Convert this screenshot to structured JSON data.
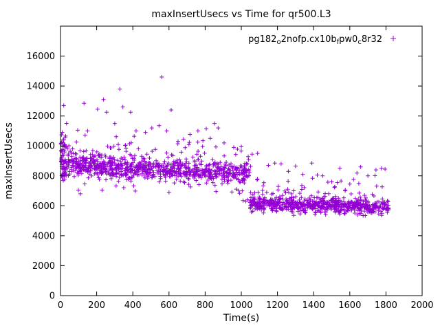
{
  "chart_data": {
    "type": "scatter",
    "title": "maxInsertUsecs vs Time for qr500.L3",
    "xlabel": "Time(s)",
    "ylabel": "maxInsertUsecs",
    "xlim": [
      0,
      2000
    ],
    "ylim": [
      0,
      18000
    ],
    "xticks": [
      0,
      200,
      400,
      600,
      800,
      1000,
      1200,
      1400,
      1600,
      1800,
      2000
    ],
    "yticks": [
      0,
      2000,
      4000,
      6000,
      8000,
      10000,
      12000,
      14000,
      16000
    ],
    "grid": false,
    "legend_position": "top-right-inside",
    "marker": "plus",
    "marker_color": "#9400d3",
    "axis_color": "#000000",
    "background_color": "#ffffff",
    "legend": {
      "series": [
        {
          "segments": [
            {
              "t": "pg182"
            },
            {
              "t": "o",
              "sub": true
            },
            {
              "t": "2nofp.cx10b"
            },
            {
              "t": "f",
              "sub": true
            },
            {
              "t": "pw0"
            },
            {
              "t": "c",
              "sub": true
            },
            {
              "t": "8r32"
            }
          ],
          "marker": "plus",
          "color": "#9400d3"
        }
      ]
    },
    "seed": 1337,
    "bands": [
      {
        "x0": 2,
        "x1": 1045,
        "n": 960,
        "mean0": 8800,
        "mean1": 8150,
        "sd": 330,
        "tail_up_p": 0.1,
        "tail_up_scale": 900,
        "tail_down_p": 0.1,
        "tail_down_scale": 650,
        "ymin": 6450,
        "ymax": 11600
      },
      {
        "x0": 1048,
        "x1": 1815,
        "n": 720,
        "mean0": 6150,
        "mean1": 5900,
        "sd": 230,
        "tail_up_p": 0.12,
        "tail_up_scale": 800,
        "tail_down_p": 0.06,
        "tail_down_scale": 300,
        "ymin": 5350,
        "ymax": 9600
      }
    ],
    "startup_cluster": {
      "x0": 3,
      "x1": 32,
      "n": 42,
      "ymin": 7650,
      "ymax": 10900
    },
    "outliers": [
      [
        18,
        12700
      ],
      [
        10,
        10900
      ],
      [
        14,
        10400
      ],
      [
        95,
        11050
      ],
      [
        110,
        6800
      ],
      [
        130,
        12850
      ],
      [
        150,
        11000
      ],
      [
        205,
        12450
      ],
      [
        230,
        7050
      ],
      [
        238,
        13100
      ],
      [
        255,
        12250
      ],
      [
        300,
        11500
      ],
      [
        328,
        13800
      ],
      [
        345,
        12600
      ],
      [
        388,
        12250
      ],
      [
        418,
        11000
      ],
      [
        470,
        10900
      ],
      [
        505,
        11200
      ],
      [
        545,
        11350
      ],
      [
        560,
        14600
      ],
      [
        588,
        11000
      ],
      [
        600,
        6900
      ],
      [
        612,
        12400
      ],
      [
        650,
        10300
      ],
      [
        680,
        10450
      ],
      [
        760,
        11000
      ],
      [
        788,
        10350
      ],
      [
        806,
        11150
      ],
      [
        828,
        10500
      ],
      [
        852,
        11500
      ],
      [
        860,
        6950
      ],
      [
        872,
        11200
      ],
      [
        905,
        10200
      ],
      [
        958,
        9900
      ],
      [
        985,
        7000
      ],
      [
        990,
        7600
      ],
      [
        1000,
        9950
      ],
      [
        1005,
        7000
      ],
      [
        1010,
        6350
      ],
      [
        1025,
        6300
      ],
      [
        1035,
        6400
      ],
      [
        1060,
        9450
      ],
      [
        1090,
        9500
      ],
      [
        1150,
        8700
      ],
      [
        1185,
        8850
      ],
      [
        1220,
        8800
      ],
      [
        1260,
        8300
      ],
      [
        1300,
        8650
      ],
      [
        1340,
        8100
      ],
      [
        1390,
        8850
      ],
      [
        1420,
        8050
      ],
      [
        1450,
        8000
      ],
      [
        1500,
        7600
      ],
      [
        1545,
        8500
      ],
      [
        1600,
        7450
      ],
      [
        1660,
        8600
      ],
      [
        1700,
        8000
      ],
      [
        1745,
        8400
      ],
      [
        1775,
        8500
      ],
      [
        1795,
        8450
      ]
    ]
  }
}
